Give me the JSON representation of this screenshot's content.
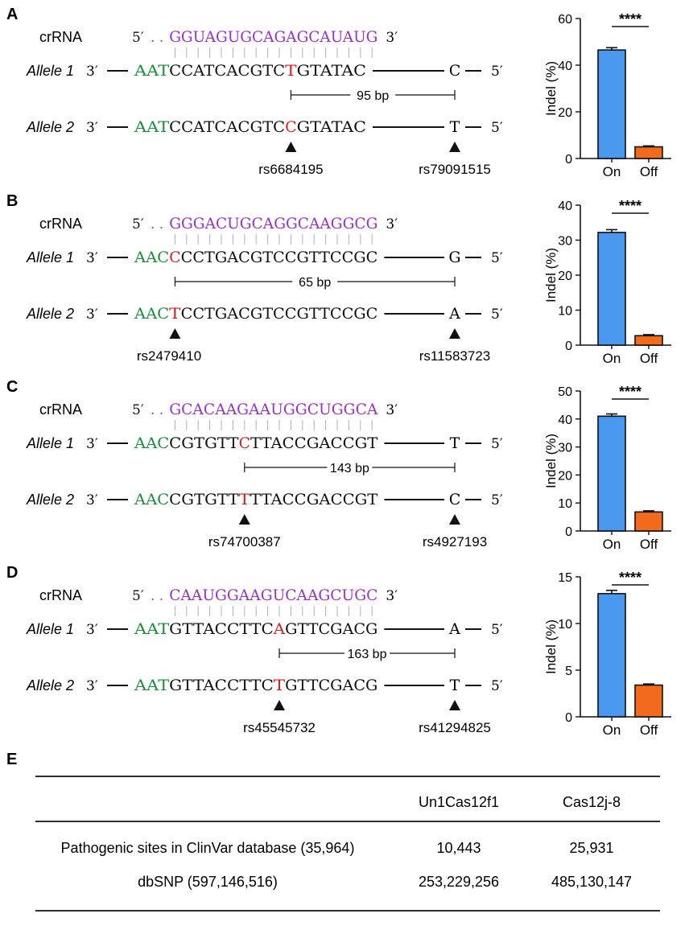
{
  "colors": {
    "crna": "#9b30c8",
    "pam": "#1a8f3a",
    "snp": "#d62020",
    "bar_on": "#4a98f0",
    "bar_off": "#f26a1b",
    "text": "#111111"
  },
  "labels": {
    "crrna": "crRNA",
    "allele1": "Allele 1",
    "allele2": "Allele 2",
    "three_prime": "3′",
    "five_prime": "5′",
    "five_prime_dots": "5′ . .",
    "ylabel": "Indel (%)",
    "sig": "****"
  },
  "panels": [
    {
      "letter": "A",
      "crrna": "GGUAGUGCAGAGCAUAUG",
      "pam": "AAT",
      "prot_pre": "CCATCACGTC",
      "snp1": "T",
      "snp2": "C",
      "prot_post": "GTATAC",
      "far1": "C",
      "far2": "T",
      "distance": "95 bp",
      "rs_left": "rs6684195",
      "rs_right": "rs79091515",
      "tick_pos": "middle",
      "chart": {
        "ymax": 60,
        "ticks": [
          "0",
          "20",
          "40",
          "60"
        ],
        "on": 46.5,
        "off": 5.0,
        "on_err": 1.0,
        "off_err": 0.4
      }
    },
    {
      "letter": "B",
      "crrna": "GGGACUGCAGGCAAGGCG",
      "pam": "AAC",
      "prot_pre": "",
      "snp1": "C",
      "snp2": "T",
      "prot_post": "CCTGACGTCCGTTCCGC",
      "far1": "G",
      "far2": "A",
      "distance": "65 bp",
      "rs_left": "rs2479410",
      "rs_right": "rs11583723",
      "tick_pos": "first",
      "chart": {
        "ymax": 40,
        "ticks": [
          "0",
          "10",
          "20",
          "30",
          "40"
        ],
        "on": 32.2,
        "off": 2.7,
        "on_err": 0.8,
        "off_err": 0.3
      }
    },
    {
      "letter": "C",
      "crrna": "GCACAAGAAUGGCUGGCA",
      "pam": "AAC",
      "prot_pre": "CGTGTT",
      "snp1": "C",
      "snp2": "T",
      "prot_post": "TTACCGACCGT",
      "far1": "T",
      "far2": "C",
      "distance": "143 bp",
      "rs_left": "rs74700387",
      "rs_right": "rs4927193",
      "tick_pos": "middle",
      "chart": {
        "ymax": 50,
        "ticks": [
          "0",
          "10",
          "20",
          "30",
          "40",
          "50"
        ],
        "on": 41.0,
        "off": 6.8,
        "on_err": 0.8,
        "off_err": 0.4
      }
    },
    {
      "letter": "D",
      "crrna": "CAAUGGAAGUCAAGCUGC",
      "pam": "AAT",
      "prot_pre": "GTTACCTTC",
      "snp1": "A",
      "snp2": "T",
      "prot_post": "GTTCGACG",
      "far1": "A",
      "far2": "T",
      "distance": "163 bp",
      "rs_left": "rs45545732",
      "rs_right": "rs41294825",
      "tick_pos": "middle",
      "chart": {
        "ymax": 15,
        "ticks": [
          "0",
          "5",
          "10",
          "15"
        ],
        "on": 13.2,
        "off": 3.4,
        "on_err": 0.35,
        "off_err": 0.12
      }
    }
  ],
  "chart_data": [
    {
      "type": "bar",
      "categories": [
        "On",
        "Off"
      ],
      "values": [
        46.5,
        5.0
      ],
      "ylabel": "Indel (%)",
      "ylim": [
        0,
        60
      ],
      "annotation": "****"
    },
    {
      "type": "bar",
      "categories": [
        "On",
        "Off"
      ],
      "values": [
        32.2,
        2.7
      ],
      "ylabel": "Indel (%)",
      "ylim": [
        0,
        40
      ],
      "annotation": "****"
    },
    {
      "type": "bar",
      "categories": [
        "On",
        "Off"
      ],
      "values": [
        41.0,
        6.8
      ],
      "ylabel": "Indel (%)",
      "ylim": [
        0,
        50
      ],
      "annotation": "****"
    },
    {
      "type": "bar",
      "categories": [
        "On",
        "Off"
      ],
      "values": [
        13.2,
        3.4
      ],
      "ylabel": "Indel (%)",
      "ylim": [
        0,
        15
      ],
      "annotation": "****"
    }
  ],
  "table": {
    "letter": "E",
    "headers": [
      "",
      "Un1Cas12f1",
      "Cas12j-8"
    ],
    "rows": [
      [
        "Pathogenic sites in ClinVar database (35,964)",
        "10,443",
        "25,931"
      ],
      [
        "dbSNP (597,146,516)",
        "253,229,256",
        "485,130,147"
      ]
    ]
  }
}
